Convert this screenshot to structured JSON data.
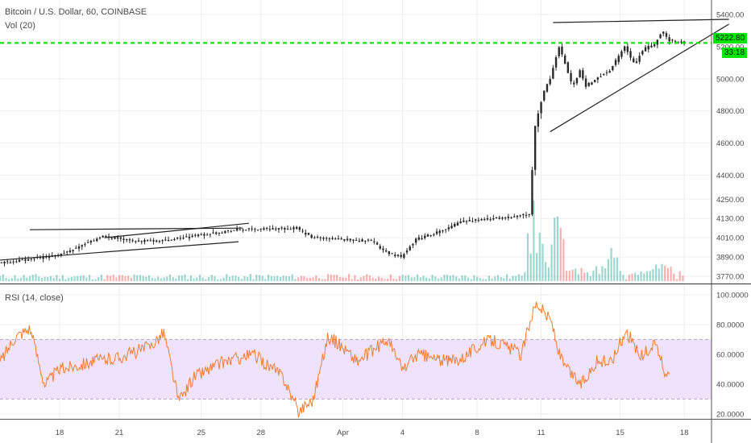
{
  "header": {
    "symbol_title": "Bitcoin / U.S. Dollar, 60, COINBASE",
    "volume_label": "Vol (20)",
    "rsi_label": "RSI (14, close)"
  },
  "colors": {
    "up": "#26a69a",
    "down": "#ef5350",
    "candle_body": "#2a2a2a",
    "level_line": "#00e600",
    "rsi_line": "#f57c2a",
    "rsi_band": "#efe2fb",
    "grid": "#eeeeee"
  },
  "price_tag": {
    "price": "5222.80",
    "countdown": "33:18"
  },
  "chart_data": [
    {
      "type": "candlestick",
      "title": "Bitcoin / U.S. Dollar, 60, COINBASE",
      "x_ticks": [
        "18",
        "21",
        "25",
        "28",
        "Apr",
        "4",
        "8",
        "11",
        "15",
        "18"
      ],
      "y_ticks": [
        3770,
        3890,
        4010,
        4130,
        4250,
        4400,
        4600,
        4800,
        5000,
        5200,
        5400
      ],
      "ylim": [
        3750,
        5450
      ],
      "horizontal_level": 5222.8,
      "grid": true,
      "close_path": [
        [
          0,
          3850
        ],
        [
          4,
          3900
        ],
        [
          7,
          4020
        ],
        [
          9,
          3990
        ],
        [
          11,
          3990
        ],
        [
          13,
          4020
        ],
        [
          16,
          4060
        ],
        [
          20,
          4070
        ],
        [
          21,
          4010
        ],
        [
          23,
          4000
        ],
        [
          25,
          3990
        ],
        [
          26,
          3920
        ],
        [
          27,
          3890
        ],
        [
          28,
          4000
        ],
        [
          29,
          4030
        ],
        [
          30,
          4060
        ],
        [
          31,
          4110
        ],
        [
          32,
          4120
        ],
        [
          33,
          4130
        ],
        [
          34,
          4130
        ],
        [
          35,
          4150
        ],
        [
          35.6,
          4160
        ],
        [
          36,
          4700
        ],
        [
          36.5,
          4900
        ],
        [
          37,
          5000
        ],
        [
          37.6,
          5200
        ],
        [
          38,
          5100
        ],
        [
          38.5,
          4950
        ],
        [
          39,
          5050
        ],
        [
          39.4,
          4950
        ],
        [
          40,
          5000
        ],
        [
          41,
          5050
        ],
        [
          42,
          5200
        ],
        [
          42.7,
          5080
        ],
        [
          43,
          5150
        ],
        [
          43.5,
          5200
        ],
        [
          44,
          5210
        ],
        [
          44.5,
          5300
        ],
        [
          45,
          5240
        ],
        [
          46,
          5222.8
        ]
      ],
      "trendlines": [
        {
          "from": [
            -0.1,
            3870
          ],
          "to": [
            16,
            3985
          ]
        },
        {
          "from": [
            2,
            4060
          ],
          "to": [
            16.3,
            4070
          ]
        },
        {
          "from": [
            7,
            4010
          ],
          "to": [
            16.7,
            4100
          ]
        },
        {
          "from": [
            37.1,
            5350
          ],
          "to": [
            48.9,
            5370
          ]
        },
        {
          "from": [
            36.9,
            4670
          ],
          "to": [
            48.9,
            5340
          ]
        }
      ],
      "volume_peaks": [
        {
          "x": 35.7,
          "rel": 0.95
        },
        {
          "x": 36.1,
          "rel": 0.55
        },
        {
          "x": 37.3,
          "rel": 0.9
        },
        {
          "x": 37.5,
          "rel": 0.6
        },
        {
          "x": 41,
          "rel": 0.45
        },
        {
          "x": 44.3,
          "rel": 0.35
        }
      ]
    },
    {
      "type": "line",
      "title": "RSI (14, close)",
      "y_ticks": [
        20,
        40,
        60,
        80,
        100
      ],
      "ylim": [
        16,
        101
      ],
      "band": [
        30,
        70
      ],
      "anchors": [
        [
          0,
          55
        ],
        [
          1,
          72
        ],
        [
          2,
          78
        ],
        [
          3,
          40
        ],
        [
          4,
          50
        ],
        [
          6,
          55
        ],
        [
          8,
          58
        ],
        [
          10,
          65
        ],
        [
          11,
          75
        ],
        [
          12,
          28
        ],
        [
          13,
          45
        ],
        [
          15,
          55
        ],
        [
          17,
          60
        ],
        [
          19,
          45
        ],
        [
          20,
          22
        ],
        [
          21,
          30
        ],
        [
          22,
          72
        ],
        [
          23,
          65
        ],
        [
          24,
          55
        ],
        [
          26,
          70
        ],
        [
          27,
          50
        ],
        [
          28,
          60
        ],
        [
          30,
          55
        ],
        [
          31,
          58
        ],
        [
          32,
          65
        ],
        [
          33,
          70
        ],
        [
          35,
          60
        ],
        [
          35.6,
          85
        ],
        [
          36,
          95
        ],
        [
          37,
          82
        ],
        [
          37.5,
          60
        ],
        [
          38,
          50
        ],
        [
          39,
          40
        ],
        [
          40,
          55
        ],
        [
          41,
          55
        ],
        [
          42,
          76
        ],
        [
          43,
          58
        ],
        [
          44,
          68
        ],
        [
          44.6,
          47
        ],
        [
          45,
          52
        ]
      ]
    }
  ]
}
